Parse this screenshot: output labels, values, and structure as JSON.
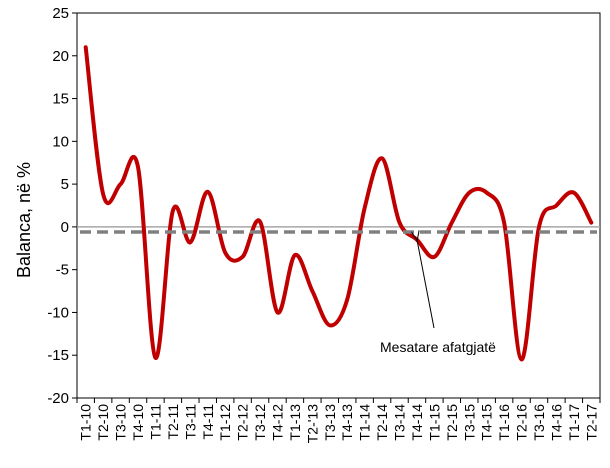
{
  "chart_data": {
    "type": "line",
    "title": "",
    "xlabel": "",
    "ylabel": "Balanca, në %",
    "ylim": [
      -20,
      25
    ],
    "yticks": [
      "25",
      "20",
      "15",
      "10",
      "5",
      "0",
      "-5",
      "-10",
      "-15",
      "-20"
    ],
    "grid": false,
    "categories": [
      "T1-10",
      "T2-10",
      "T3-10",
      "T4-10",
      "T1-11",
      "T2-11",
      "T3-11",
      "T4-11",
      "T1-12",
      "T2-12",
      "T3-12",
      "T4-12",
      "T1-13",
      "T2-'13",
      "T3-13",
      "T4-13",
      "T1-14",
      "T2-14",
      "T3-14",
      "T4-14",
      "T1-15",
      "T2-15",
      "T3-15",
      "T4-15",
      "T1-16",
      "T2-16",
      "T3-16",
      "T4-16",
      "T1-17",
      "T2-17"
    ],
    "series": [
      {
        "color": "#c00000",
        "values": [
          21,
          3.8,
          5,
          7,
          -15.3,
          1.9,
          -1.8,
          4.1,
          -3,
          -3.5,
          0.6,
          -10,
          -3.3,
          -7.5,
          -11.5,
          -8.5,
          2.2,
          8,
          0.5,
          -1.5,
          -3.5,
          0.5,
          4,
          4,
          0.5,
          -15.5,
          0,
          2.5,
          4,
          0.5
        ]
      },
      {
        "color": "#808080",
        "dashed": true,
        "values": [
          -0.6,
          -0.6,
          -0.6,
          -0.6,
          -0.6,
          -0.6,
          -0.6,
          -0.6,
          -0.6,
          -0.6,
          -0.6,
          -0.6,
          -0.6,
          -0.6,
          -0.6,
          -0.6,
          -0.6,
          -0.6,
          -0.6,
          -0.6,
          -0.6,
          -0.6,
          -0.6,
          -0.6,
          -0.6,
          -0.6,
          -0.6,
          -0.6,
          -0.6,
          -0.6
        ]
      }
    ],
    "annotations": [
      {
        "text": "Mesatare afatgjatë",
        "points_to_category": "T4-14"
      }
    ]
  }
}
